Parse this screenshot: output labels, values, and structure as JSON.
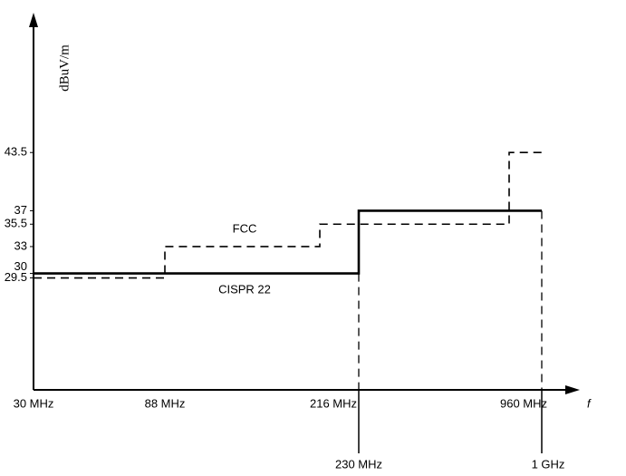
{
  "chart_data": {
    "type": "step",
    "x_label": "f",
    "y_label": "dBuV/m",
    "categories": [
      "30 MHz",
      "88 MHz",
      "216 MHz",
      "230 MHz",
      "960 MHz",
      "1 GHz"
    ],
    "series": [
      {
        "name": "FCC",
        "color": "#000000",
        "dash": true,
        "values": [
          29.5,
          33,
          35.5,
          35.5,
          43.5,
          null
        ]
      },
      {
        "name": "CISPR 22",
        "color": "#000000",
        "dash": false,
        "values": [
          30,
          30,
          30,
          37,
          37,
          null
        ]
      }
    ],
    "ylim": [
      17,
      58
    ],
    "yticks": [
      29.5,
      30,
      33,
      35.5,
      37,
      43.5
    ]
  }
}
